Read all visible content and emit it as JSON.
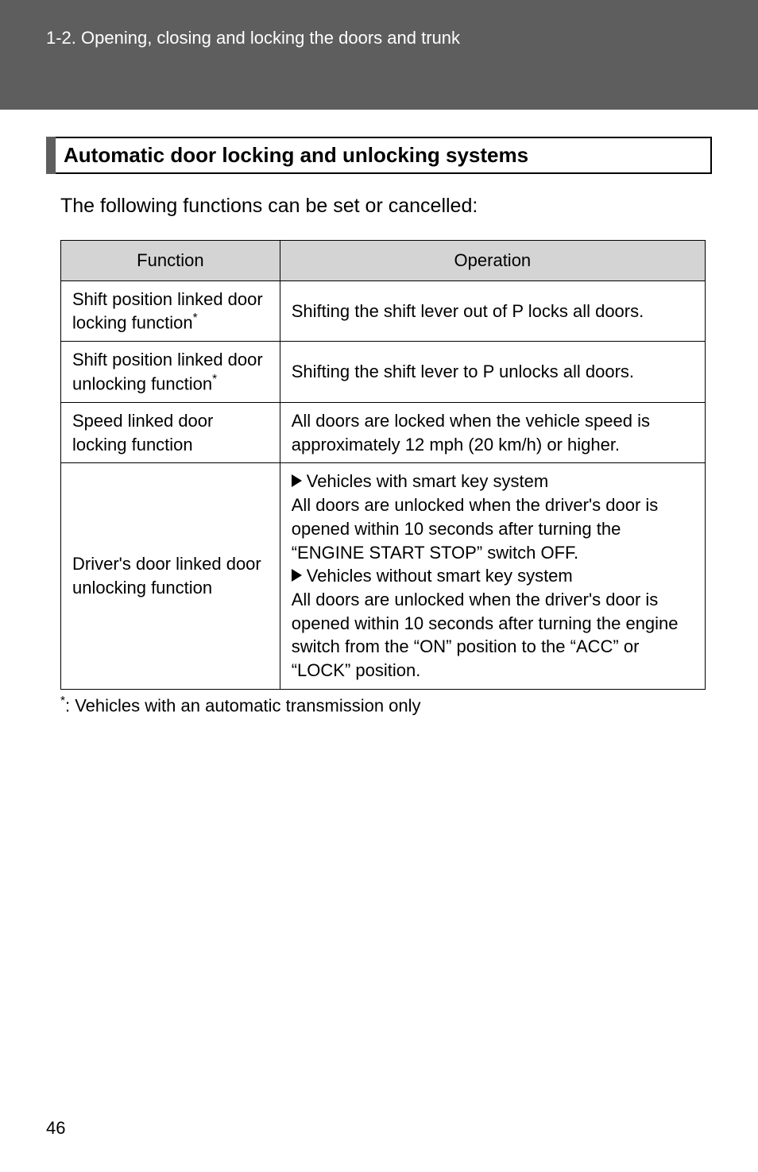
{
  "header": {
    "breadcrumb": "1-2. Opening, closing and locking the doors and trunk"
  },
  "section": {
    "title": "Automatic door locking and unlocking systems",
    "intro": "The following functions can be set or cancelled:"
  },
  "table": {
    "columns": [
      "Function",
      "Operation"
    ],
    "rows": [
      {
        "func_prefix": "Shift position linked door locking function",
        "func_sup": "*",
        "op_lines": [
          {
            "arrow": false,
            "text": "Shifting the shift lever out of P locks all doors."
          }
        ]
      },
      {
        "func_prefix": "Shift position linked door unlocking function",
        "func_sup": "*",
        "op_lines": [
          {
            "arrow": false,
            "text": "Shifting the shift lever to P unlocks all doors."
          }
        ]
      },
      {
        "func_prefix": "Speed linked door locking function",
        "func_sup": "",
        "op_lines": [
          {
            "arrow": false,
            "text": "All doors are locked when the vehicle speed is approximately 12 mph (20 km/h) or higher."
          }
        ]
      },
      {
        "func_prefix": "Driver's door linked door unlocking function",
        "func_sup": "",
        "op_lines": [
          {
            "arrow": true,
            "text": "Vehicles with smart key system"
          },
          {
            "arrow": false,
            "text": "All doors are unlocked when the driver's door is opened within 10 seconds after turning the “ENGINE START STOP” switch OFF."
          },
          {
            "arrow": true,
            "text": "Vehicles without smart key system"
          },
          {
            "arrow": false,
            "text": "All doors are unlocked when the driver's door is opened within 10 seconds after turning the engine switch from the “ON” position to the “ACC” or “LOCK” position."
          }
        ]
      }
    ]
  },
  "footnote": {
    "marker": "*",
    "text": ": Vehicles with an automatic transmission only"
  },
  "page": {
    "number": "46"
  },
  "colors": {
    "header_band": "#5e5e5e",
    "header_text": "#ffffff",
    "table_header_bg": "#d4d4d4",
    "border": "#000000",
    "text": "#000000"
  },
  "typography": {
    "body_fontsize_pt": 17,
    "heading_fontsize_pt": 20,
    "font_family": "Arial"
  }
}
